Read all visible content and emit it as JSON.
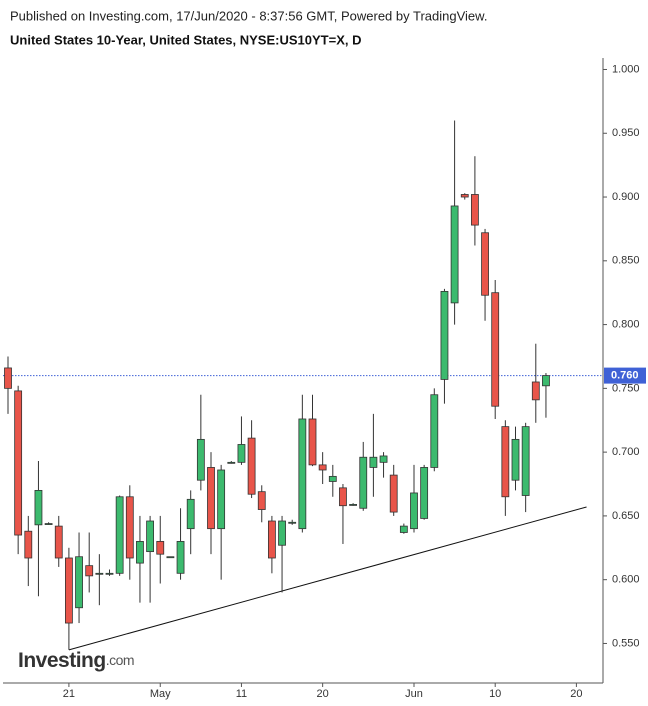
{
  "chart_data": {
    "type": "candlestick",
    "published": "Published on Investing.com, 17/Jun/2020 - 8:37:56 GMT, Powered by TradingView.",
    "title": "United States 10-Year, United States, NYSE:US10YT=X, D",
    "logo": {
      "name": "Investing",
      "suffix": ".com"
    },
    "categories": [
      null,
      null,
      null,
      null,
      null,
      null,
      "21",
      null,
      null,
      null,
      null,
      null,
      null,
      null,
      null,
      "May",
      null,
      null,
      null,
      null,
      null,
      null,
      null,
      "11",
      null,
      null,
      null,
      null,
      null,
      null,
      null,
      "20",
      null,
      null,
      null,
      null,
      null,
      null,
      null,
      null,
      "Jun",
      null,
      null,
      null,
      null,
      null,
      null,
      null,
      "10",
      null,
      null,
      null,
      null,
      null,
      null,
      null,
      "20",
      null
    ],
    "open": [
      0.766,
      0.748,
      0.638,
      0.643,
      0.644,
      0.642,
      0.617,
      0.578,
      0.611,
      0.605,
      0.605,
      0.605,
      0.665,
      0.613,
      0.622,
      0.63,
      0.618,
      0.605,
      0.64,
      0.678,
      0.688,
      0.64,
      0.692,
      0.692,
      0.711,
      0.669,
      0.646,
      0.627,
      0.645,
      0.64,
      0.726,
      0.69,
      0.677,
      0.672,
      0.659,
      0.656,
      0.688,
      0.692,
      0.682,
      0.637,
      0.64,
      0.648,
      0.688,
      0.757,
      0.817,
      0.902,
      0.902,
      0.872,
      0.825,
      0.72,
      0.678,
      0.666,
      0.755,
      0.752,
      null,
      null,
      null,
      null
    ],
    "high": [
      0.775,
      0.752,
      0.65,
      0.693,
      0.645,
      0.65,
      0.625,
      0.637,
      0.637,
      0.62,
      0.608,
      0.666,
      0.674,
      0.65,
      0.65,
      0.65,
      0.618,
      0.656,
      0.67,
      0.745,
      0.7,
      0.69,
      0.693,
      0.728,
      0.725,
      0.674,
      0.65,
      0.65,
      0.647,
      0.745,
      0.745,
      0.7,
      0.69,
      0.675,
      0.66,
      0.708,
      0.73,
      0.7,
      0.69,
      0.644,
      0.69,
      0.69,
      0.75,
      0.828,
      0.96,
      0.903,
      0.932,
      0.875,
      0.835,
      0.725,
      0.72,
      0.723,
      0.785,
      0.762,
      null,
      null,
      null,
      null
    ],
    "low": [
      0.73,
      0.62,
      0.595,
      0.587,
      0.643,
      0.61,
      0.545,
      0.566,
      0.59,
      0.58,
      0.603,
      0.603,
      0.6,
      0.582,
      0.582,
      0.597,
      0.617,
      0.6,
      0.62,
      0.67,
      0.62,
      0.6,
      0.691,
      0.69,
      0.664,
      0.645,
      0.605,
      0.59,
      0.643,
      0.637,
      0.689,
      0.675,
      0.665,
      0.628,
      0.658,
      0.654,
      0.665,
      0.68,
      0.65,
      0.636,
      0.637,
      0.647,
      0.685,
      0.738,
      0.8,
      0.898,
      0.862,
      0.803,
      0.726,
      0.65,
      0.67,
      0.653,
      0.723,
      0.727,
      null,
      null,
      null,
      null
    ],
    "close": [
      0.75,
      0.635,
      0.617,
      0.67,
      0.644,
      0.617,
      0.566,
      0.618,
      0.603,
      0.605,
      0.605,
      0.665,
      0.617,
      0.63,
      0.646,
      0.62,
      0.618,
      0.63,
      0.663,
      0.71,
      0.64,
      0.686,
      0.692,
      0.706,
      0.667,
      0.655,
      0.617,
      0.646,
      0.645,
      0.726,
      0.69,
      0.686,
      0.681,
      0.658,
      0.659,
      0.696,
      0.696,
      0.697,
      0.653,
      0.642,
      0.668,
      0.688,
      0.745,
      0.826,
      0.893,
      0.9,
      0.878,
      0.823,
      0.736,
      0.665,
      0.71,
      0.72,
      0.741,
      0.76,
      null,
      null,
      null,
      null
    ],
    "up_color": "#3cba6e",
    "down_color": "#e8554a",
    "last_price": {
      "value": 0.76,
      "label": "0.760"
    },
    "last_price_color": "#3f61d6",
    "trendline": {
      "x": [
        6,
        57
      ],
      "values": [
        0.545,
        0.657
      ]
    },
    "ylim": [
      0.519,
      1.009
    ],
    "yticks": [
      {
        "value": 0.55,
        "label": "0.550"
      },
      {
        "value": 0.6,
        "label": "0.600"
      },
      {
        "value": 0.65,
        "label": "0.650"
      },
      {
        "value": 0.7,
        "label": "0.700"
      },
      {
        "value": 0.75,
        "label": "0.750"
      },
      {
        "value": 0.8,
        "label": "0.800"
      },
      {
        "value": 0.85,
        "label": "0.850"
      },
      {
        "value": 0.9,
        "label": "0.900"
      },
      {
        "value": 0.95,
        "label": "0.950"
      },
      {
        "value": 1.0,
        "label": "1.000"
      }
    ]
  }
}
